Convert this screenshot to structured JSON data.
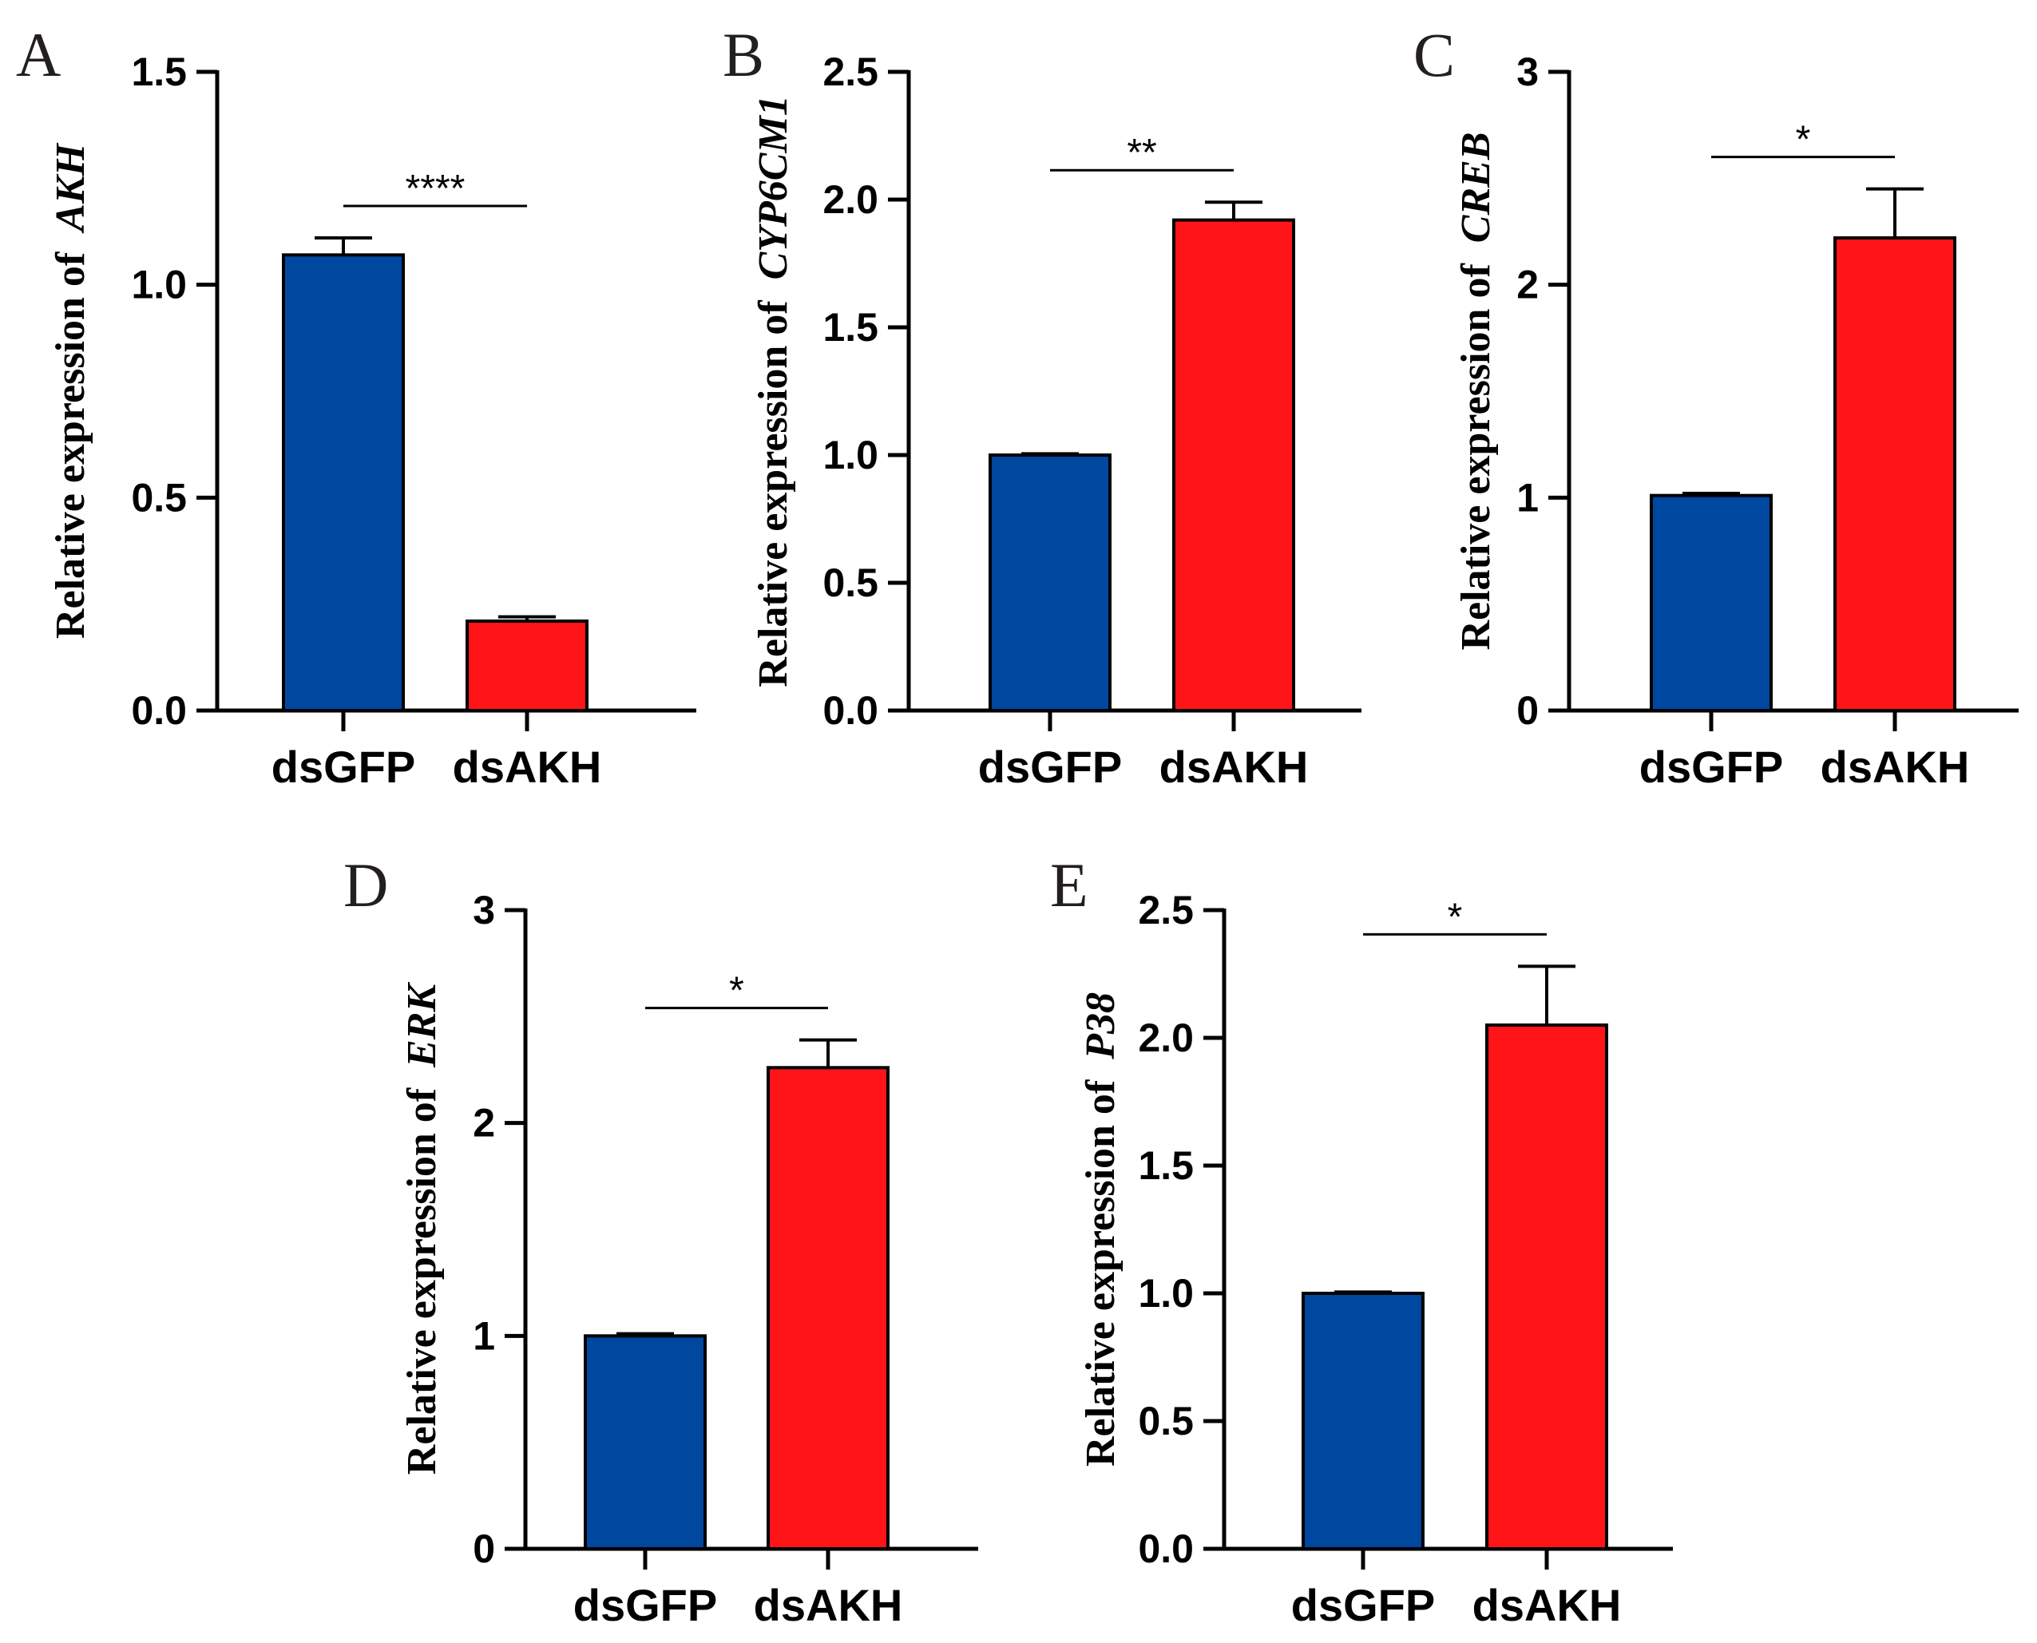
{
  "colors": {
    "control": "#0047a0",
    "treatment": "#ff1418",
    "axis": "#000000"
  },
  "chart_data": [
    {
      "panel": "A",
      "type": "bar",
      "ylabel_prefix": "Relative expression of",
      "gene": "AKH",
      "categories": [
        "dsGFP",
        "dsAKH"
      ],
      "values": [
        1.07,
        0.21
      ],
      "errors": [
        0.04,
        0.01
      ],
      "ylim": [
        0,
        1.5
      ],
      "yticks": [
        "0.0",
        "0.5",
        "1.0",
        "1.5"
      ],
      "significance": "****"
    },
    {
      "panel": "B",
      "type": "bar",
      "ylabel_prefix": "Relative expression of",
      "gene": "CYP6CM1",
      "categories": [
        "dsGFP",
        "dsAKH"
      ],
      "values": [
        1.0,
        1.92
      ],
      "errors": [
        0.005,
        0.07
      ],
      "ylim": [
        0,
        2.5
      ],
      "yticks": [
        "0.0",
        "0.5",
        "1.0",
        "1.5",
        "2.0",
        "2.5"
      ],
      "significance": "**"
    },
    {
      "panel": "C",
      "type": "bar",
      "ylabel_prefix": "Relative expression of",
      "gene": "CREB",
      "categories": [
        "dsGFP",
        "dsAKH"
      ],
      "values": [
        1.01,
        2.22
      ],
      "errors": [
        0.01,
        0.23
      ],
      "ylim": [
        0,
        3
      ],
      "yticks": [
        "0",
        "1",
        "2",
        "3"
      ],
      "significance": "*"
    },
    {
      "panel": "D",
      "type": "bar",
      "ylabel_prefix": "Relative expression of",
      "gene": "ERK",
      "categories": [
        "dsGFP",
        "dsAKH"
      ],
      "values": [
        1.0,
        2.26
      ],
      "errors": [
        0.01,
        0.13
      ],
      "ylim": [
        0,
        3
      ],
      "yticks": [
        "0",
        "1",
        "2",
        "3"
      ],
      "significance": "*"
    },
    {
      "panel": "E",
      "type": "bar",
      "ylabel_prefix": "Relative expression of",
      "gene": "P38",
      "categories": [
        "dsGFP",
        "dsAKH"
      ],
      "values": [
        1.0,
        2.05
      ],
      "errors": [
        0.005,
        0.23
      ],
      "ylim": [
        0,
        2.5
      ],
      "yticks": [
        "0.0",
        "0.5",
        "1.0",
        "1.5",
        "2.0",
        "2.5"
      ],
      "significance": "*"
    }
  ]
}
